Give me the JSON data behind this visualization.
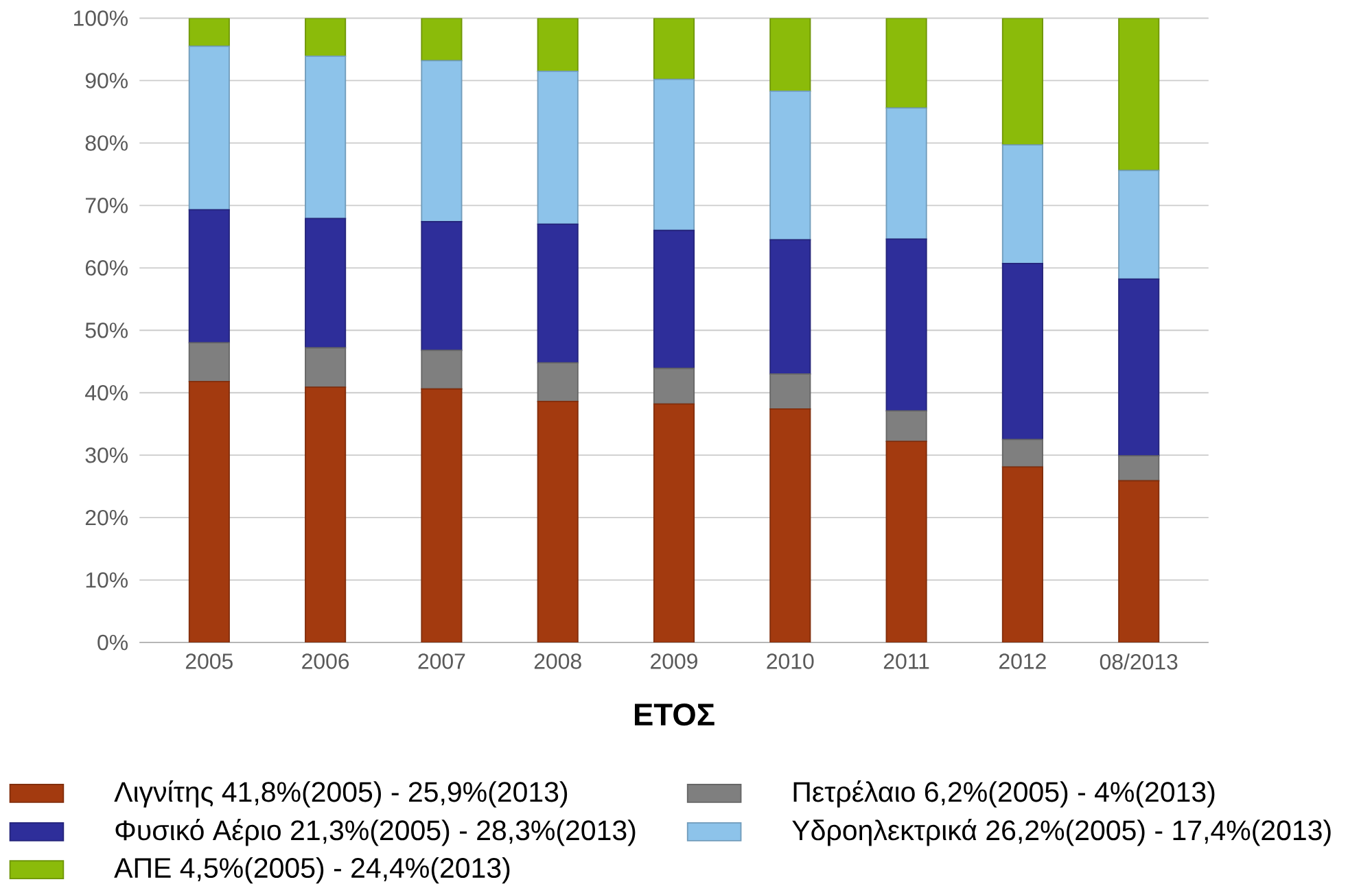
{
  "chart_data": {
    "type": "bar",
    "stacked": true,
    "xlabel": "ΕΤΟΣ",
    "categories": [
      "2005",
      "2006",
      "2007",
      "2008",
      "2009",
      "2010",
      "2011",
      "2012",
      "08/2013"
    ],
    "series": [
      {
        "name": "Λιγνίτης 41,8%(2005) - 25,9%(2013)",
        "color": "#a33a0f",
        "values": [
          41.8,
          40.9,
          40.6,
          38.6,
          38.2,
          37.4,
          32.2,
          28.1,
          25.9
        ]
      },
      {
        "name": "Πετρέλαιο 6,2%(2005) - 4%(2013)",
        "color": "#7f7f7f",
        "values": [
          6.2,
          6.3,
          6.2,
          6.2,
          5.7,
          5.6,
          4.9,
          4.4,
          4.0
        ]
      },
      {
        "name": "Φυσικό Αέριο 21,3%(2005) - 28,3%(2013)",
        "color": "#2e2e9a",
        "values": [
          21.3,
          20.7,
          20.6,
          22.2,
          22.1,
          21.5,
          27.5,
          28.2,
          28.3
        ]
      },
      {
        "name": "Υδροηλεκτρικά 26,2%(2005) - 17,4%(2013)",
        "color": "#8dc3ea",
        "values": [
          26.2,
          26.0,
          25.8,
          24.5,
          24.2,
          23.8,
          21.0,
          19.0,
          17.4
        ]
      },
      {
        "name": "ΑΠΕ 4,5%(2005) - 24,4%(2013)",
        "color": "#8bbb0a",
        "values": [
          4.5,
          6.1,
          6.8,
          8.5,
          9.8,
          11.7,
          14.4,
          20.3,
          24.4
        ]
      }
    ],
    "ylim": [
      0,
      100
    ],
    "yticks": [
      {
        "value": 0,
        "label": "0%"
      },
      {
        "value": 10,
        "label": "10%"
      },
      {
        "value": 20,
        "label": "20%"
      },
      {
        "value": 30,
        "label": "30%"
      },
      {
        "value": 40,
        "label": "40%"
      },
      {
        "value": 50,
        "label": "50%"
      },
      {
        "value": 60,
        "label": "60%"
      },
      {
        "value": 70,
        "label": "70%"
      },
      {
        "value": 80,
        "label": "80%"
      },
      {
        "value": 90,
        "label": "90%"
      },
      {
        "value": 100,
        "label": "100%"
      }
    ],
    "grid": "y",
    "legend": "bottom"
  }
}
